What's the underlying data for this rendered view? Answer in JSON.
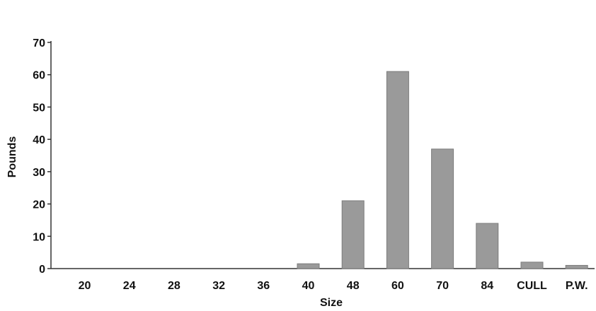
{
  "chart_data": {
    "type": "bar",
    "title": "",
    "xlabel": "Size",
    "ylabel": "Pounds",
    "categories": [
      "20",
      "24",
      "28",
      "32",
      "36",
      "40",
      "48",
      "60",
      "70",
      "84",
      "CULL",
      "P.W."
    ],
    "values": [
      0,
      0,
      0,
      0,
      0,
      1.5,
      21,
      61,
      37,
      14,
      2,
      1
    ],
    "ylim": [
      0,
      70
    ],
    "yticks": [
      0,
      10,
      20,
      30,
      40,
      50,
      60,
      70
    ],
    "grid": false,
    "legend": "none",
    "bar_color": "#9a9a9a"
  }
}
